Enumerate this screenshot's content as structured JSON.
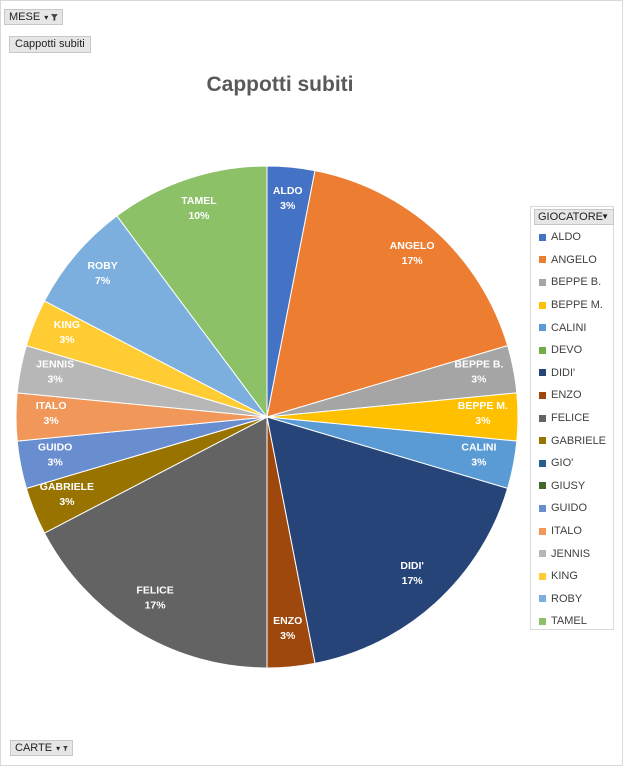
{
  "filters": {
    "month_label": "MESE",
    "values_label": "Cappotti subiti",
    "cards_label": "CARTE"
  },
  "legend": {
    "header": "GIOCATORE"
  },
  "chart_data": {
    "type": "pie",
    "title": "Cappotti subiti",
    "legend_placement": "right",
    "categories": [
      "ALDO",
      "ANGELO",
      "BEPPE B.",
      "BEPPE M.",
      "CALINI",
      "DEVO",
      "DIDI'",
      "ENZO",
      "FELICE",
      "GABRIELE",
      "GIO'",
      "GIUSY",
      "GUIDO",
      "ITALO",
      "JENNIS",
      "KING",
      "ROBY",
      "TAMEL"
    ],
    "values": [
      3,
      17,
      3,
      3,
      3,
      0,
      17,
      3,
      17,
      3,
      0,
      0,
      3,
      3,
      3,
      3,
      7,
      10
    ],
    "labels": [
      "3%",
      "17%",
      "3%",
      "3%",
      "3%",
      "",
      "17%",
      "3%",
      "17%",
      "3%",
      "",
      "",
      "3%",
      "3%",
      "3%",
      "3%",
      "7%",
      "10%"
    ],
    "colors": [
      "#4472C4",
      "#ED7D31",
      "#A5A5A5",
      "#FFC000",
      "#5B9BD5",
      "#70AD47",
      "#264478",
      "#9E480E",
      "#636363",
      "#997300",
      "#255E91",
      "#43682B",
      "#698ED0",
      "#F1975A",
      "#B7B7B7",
      "#FFCD33",
      "#7CAFDD",
      "#8CC168"
    ]
  }
}
